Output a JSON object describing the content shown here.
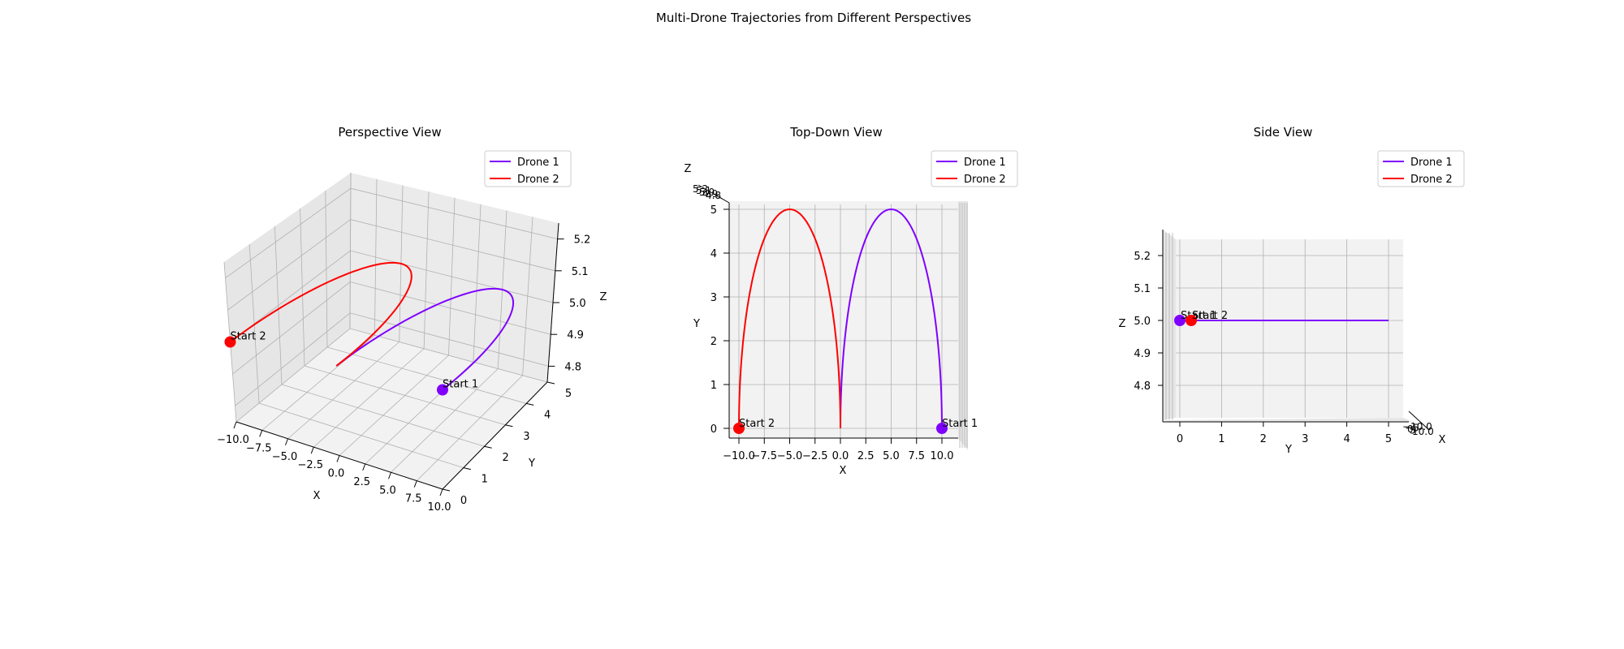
{
  "figure_title": "Multi-Drone Trajectories from Different Perspectives",
  "colors": {
    "drone1": "#7f00ff",
    "drone2": "#ff0000",
    "pane": "#f2f2f2",
    "grid": "#b0b0b0"
  },
  "chart_data": [
    {
      "type": "line",
      "view": "perspective",
      "title": "Perspective View",
      "xlabel": "X",
      "ylabel": "Y",
      "zlabel": "Z",
      "xticks": [
        "−10.0",
        "−7.5",
        "−5.0",
        "−2.5",
        "0.0",
        "2.5",
        "5.0",
        "7.5",
        "10.0"
      ],
      "yticks": [
        "0",
        "1",
        "2",
        "3",
        "4",
        "5"
      ],
      "zticks": [
        "4.8",
        "4.9",
        "5.0",
        "5.1",
        "5.2"
      ],
      "xlim": [
        -10,
        10
      ],
      "ylim": [
        0,
        5
      ],
      "zlim": [
        4.75,
        5.25
      ],
      "legend": "top-right",
      "series": [
        {
          "name": "Drone 1",
          "color": "#7f00ff",
          "path": "semicircle",
          "x_range": [
            0,
            10
          ],
          "center": 5,
          "radius": 5,
          "z": 5.0,
          "start_label": "Start 1",
          "start": [
            10,
            0,
            5.0
          ]
        },
        {
          "name": "Drone 2",
          "color": "#ff0000",
          "path": "semicircle",
          "x_range": [
            -10,
            0
          ],
          "center": -5,
          "radius": 5,
          "z": 5.0,
          "start_label": "Start 2",
          "start": [
            -10,
            0,
            5.0
          ]
        }
      ]
    },
    {
      "type": "line",
      "view": "top-down",
      "title": "Top-Down View",
      "xlabel": "X",
      "ylabel": "Y",
      "zlabel": "Z",
      "xticks": [
        "−10.0",
        "−7.5",
        "−5.0",
        "−2.5",
        "0.0",
        "2.5",
        "5.0",
        "7.5",
        "10.0"
      ],
      "yticks": [
        "0",
        "1",
        "2",
        "3",
        "4",
        "5"
      ],
      "zticks": [
        "5.2",
        "5.1",
        "5.0",
        "4.9",
        "4.8"
      ],
      "xlim": [
        -10,
        10
      ],
      "ylim": [
        0,
        5
      ],
      "legend": "top-right",
      "series": [
        {
          "name": "Drone 1",
          "color": "#7f00ff",
          "start_label": "Start 1"
        },
        {
          "name": "Drone 2",
          "color": "#ff0000",
          "start_label": "Start 2"
        }
      ]
    },
    {
      "type": "line",
      "view": "side",
      "title": "Side View",
      "xlabel": "X",
      "ylabel": "Y",
      "zlabel": "Z",
      "yticks": [
        "0",
        "1",
        "2",
        "3",
        "4",
        "5"
      ],
      "zticks": [
        "4.8",
        "4.9",
        "5.0",
        "5.1",
        "5.2"
      ],
      "xticks": [
        "−10.0",
        "−5",
        "0",
        "5",
        "10.0"
      ],
      "ylim": [
        0,
        5
      ],
      "zlim": [
        4.75,
        5.25
      ],
      "legend": "top-right",
      "series": [
        {
          "name": "Drone 1",
          "color": "#7f00ff",
          "start_label": "Start 1"
        },
        {
          "name": "Drone 2",
          "color": "#ff0000",
          "start_label": "Start 2"
        }
      ]
    }
  ]
}
